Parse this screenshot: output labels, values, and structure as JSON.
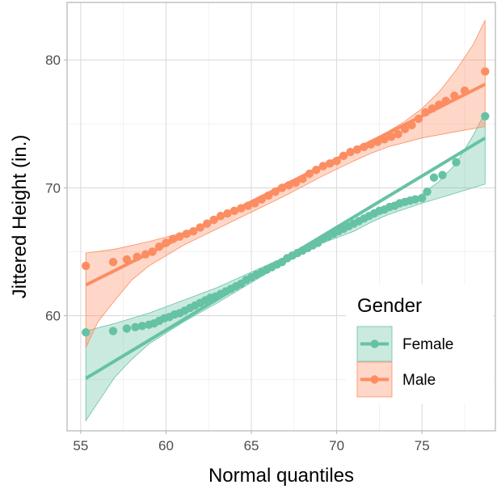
{
  "chart_data": {
    "type": "scatter",
    "xlabel": "Normal quantiles",
    "ylabel": "Jittered Height (in.)",
    "xlim": [
      54.2,
      79.3
    ],
    "ylim": [
      51.0,
      84.5
    ],
    "xticks": [
      55,
      60,
      65,
      70,
      75
    ],
    "yticks": [
      60,
      70,
      80
    ],
    "grid": true,
    "legend": {
      "title": "Gender",
      "placement": "bottom-right",
      "entries": [
        "Female",
        "Male"
      ]
    },
    "series": [
      {
        "name": "Female",
        "color": "#66c2a5",
        "fit_line": {
          "x": [
            55.3,
            78.7
          ],
          "y": [
            55.1,
            73.9
          ]
        },
        "band_upper": [
          [
            55.3,
            58.8
          ],
          [
            57.0,
            59.4
          ],
          [
            59.0,
            60.2
          ],
          [
            61.0,
            61.2
          ],
          [
            63.0,
            62.2
          ],
          [
            65.0,
            63.4
          ],
          [
            67.0,
            64.6
          ],
          [
            69.0,
            66.0
          ],
          [
            71.0,
            67.1
          ],
          [
            73.0,
            68.2
          ],
          [
            74.0,
            68.8
          ],
          [
            75.0,
            69.5
          ],
          [
            76.0,
            70.5
          ],
          [
            77.0,
            71.9
          ],
          [
            78.0,
            74.1
          ],
          [
            78.7,
            75.9
          ]
        ],
        "band_lower": [
          [
            55.3,
            51.8
          ],
          [
            56.0,
            53.2
          ],
          [
            57.0,
            55.2
          ],
          [
            58.0,
            56.6
          ],
          [
            59.0,
            57.8
          ],
          [
            61.0,
            59.5
          ],
          [
            63.0,
            61.0
          ],
          [
            65.0,
            62.6
          ],
          [
            67.0,
            64.2
          ],
          [
            69.0,
            65.6
          ],
          [
            71.0,
            66.6
          ],
          [
            72.0,
            67.3
          ],
          [
            73.0,
            67.9
          ],
          [
            75.0,
            68.8
          ],
          [
            77.0,
            69.6
          ],
          [
            78.7,
            70.3
          ]
        ],
        "points": [
          [
            55.3,
            58.7
          ],
          [
            56.9,
            58.8
          ],
          [
            57.7,
            59.0
          ],
          [
            58.2,
            59.1
          ],
          [
            58.6,
            59.2
          ],
          [
            59.0,
            59.3
          ],
          [
            59.3,
            59.4
          ],
          [
            59.6,
            59.6
          ],
          [
            59.9,
            59.8
          ],
          [
            60.2,
            59.9
          ],
          [
            60.5,
            60.1
          ],
          [
            60.8,
            60.2
          ],
          [
            61.1,
            60.4
          ],
          [
            61.4,
            60.6
          ],
          [
            61.7,
            60.8
          ],
          [
            62.0,
            61.0
          ],
          [
            62.3,
            61.2
          ],
          [
            62.6,
            61.4
          ],
          [
            62.9,
            61.5
          ],
          [
            63.2,
            61.7
          ],
          [
            63.5,
            61.9
          ],
          [
            63.8,
            62.1
          ],
          [
            64.1,
            62.3
          ],
          [
            64.4,
            62.5
          ],
          [
            64.7,
            62.8
          ],
          [
            65.0,
            63.0
          ],
          [
            65.3,
            63.2
          ],
          [
            65.6,
            63.4
          ],
          [
            65.9,
            63.6
          ],
          [
            66.2,
            63.8
          ],
          [
            66.5,
            64.0
          ],
          [
            66.8,
            64.2
          ],
          [
            67.1,
            64.5
          ],
          [
            67.4,
            64.7
          ],
          [
            67.7,
            64.9
          ],
          [
            68.0,
            65.1
          ],
          [
            68.3,
            65.3
          ],
          [
            68.6,
            65.5
          ],
          [
            68.9,
            65.7
          ],
          [
            69.2,
            66.0
          ],
          [
            69.5,
            66.2
          ],
          [
            69.8,
            66.4
          ],
          [
            70.1,
            66.6
          ],
          [
            70.4,
            66.8
          ],
          [
            70.7,
            67.0
          ],
          [
            71.0,
            67.2
          ],
          [
            71.3,
            67.4
          ],
          [
            71.6,
            67.6
          ],
          [
            71.9,
            67.8
          ],
          [
            72.2,
            68.0
          ],
          [
            72.5,
            68.2
          ],
          [
            72.8,
            68.3
          ],
          [
            73.1,
            68.5
          ],
          [
            73.4,
            68.6
          ],
          [
            73.7,
            68.8
          ],
          [
            74.0,
            68.9
          ],
          [
            74.3,
            69.0
          ],
          [
            74.6,
            69.1
          ],
          [
            75.0,
            69.2
          ],
          [
            75.3,
            69.7
          ],
          [
            75.7,
            70.8
          ],
          [
            76.2,
            71.0
          ],
          [
            77.0,
            72.0
          ],
          [
            78.7,
            75.6
          ]
        ]
      },
      {
        "name": "Male",
        "color": "#fc8d62",
        "fit_line": {
          "x": [
            55.3,
            78.7
          ],
          "y": [
            62.4,
            78.1
          ]
        },
        "band_upper": [
          [
            55.3,
            64.9
          ],
          [
            57.0,
            65.2
          ],
          [
            59.0,
            65.8
          ],
          [
            61.0,
            66.5
          ],
          [
            63.0,
            67.5
          ],
          [
            65.0,
            68.8
          ],
          [
            67.0,
            70.2
          ],
          [
            69.0,
            71.6
          ],
          [
            71.0,
            73.0
          ],
          [
            73.0,
            74.4
          ],
          [
            74.0,
            75.2
          ],
          [
            75.0,
            76.2
          ],
          [
            76.0,
            77.5
          ],
          [
            77.0,
            79.2
          ],
          [
            78.0,
            81.2
          ],
          [
            78.7,
            83.1
          ]
        ],
        "band_lower": [
          [
            55.3,
            57.5
          ],
          [
            56.0,
            59.5
          ],
          [
            57.0,
            61.2
          ],
          [
            58.0,
            62.8
          ],
          [
            59.0,
            63.9
          ],
          [
            61.0,
            65.5
          ],
          [
            63.0,
            66.8
          ],
          [
            65.0,
            68.1
          ],
          [
            67.0,
            69.4
          ],
          [
            69.0,
            70.8
          ],
          [
            71.0,
            72.1
          ],
          [
            72.0,
            72.7
          ],
          [
            73.0,
            73.2
          ],
          [
            75.0,
            73.9
          ],
          [
            77.0,
            74.4
          ],
          [
            78.7,
            74.8
          ]
        ],
        "points": [
          [
            55.3,
            63.9
          ],
          [
            56.9,
            64.2
          ],
          [
            57.7,
            64.4
          ],
          [
            58.3,
            64.6
          ],
          [
            58.8,
            64.8
          ],
          [
            59.2,
            65.0
          ],
          [
            59.6,
            65.4
          ],
          [
            60.0,
            65.7
          ],
          [
            60.4,
            66.0
          ],
          [
            60.8,
            66.2
          ],
          [
            61.2,
            66.4
          ],
          [
            61.6,
            66.6
          ],
          [
            62.0,
            66.9
          ],
          [
            62.4,
            67.2
          ],
          [
            62.8,
            67.5
          ],
          [
            63.2,
            67.8
          ],
          [
            63.6,
            68.0
          ],
          [
            64.0,
            68.2
          ],
          [
            64.4,
            68.4
          ],
          [
            64.8,
            68.6
          ],
          [
            65.2,
            68.8
          ],
          [
            65.6,
            69.1
          ],
          [
            66.0,
            69.4
          ],
          [
            66.4,
            69.7
          ],
          [
            66.8,
            70.0
          ],
          [
            67.2,
            70.2
          ],
          [
            67.6,
            70.4
          ],
          [
            68.0,
            70.7
          ],
          [
            68.4,
            71.1
          ],
          [
            68.8,
            71.4
          ],
          [
            69.2,
            71.7
          ],
          [
            69.6,
            71.9
          ],
          [
            70.0,
            72.1
          ],
          [
            70.4,
            72.5
          ],
          [
            70.8,
            72.8
          ],
          [
            71.2,
            73.0
          ],
          [
            71.6,
            73.2
          ],
          [
            72.0,
            73.4
          ],
          [
            72.4,
            73.6
          ],
          [
            72.8,
            73.8
          ],
          [
            73.2,
            74.0
          ],
          [
            73.6,
            74.2
          ],
          [
            74.0,
            74.6
          ],
          [
            74.4,
            74.9
          ],
          [
            74.8,
            75.4
          ],
          [
            75.2,
            75.9
          ],
          [
            75.6,
            76.2
          ],
          [
            76.0,
            76.5
          ],
          [
            76.4,
            76.8
          ],
          [
            76.9,
            77.2
          ],
          [
            77.5,
            77.6
          ],
          [
            78.7,
            79.1
          ]
        ]
      }
    ]
  }
}
